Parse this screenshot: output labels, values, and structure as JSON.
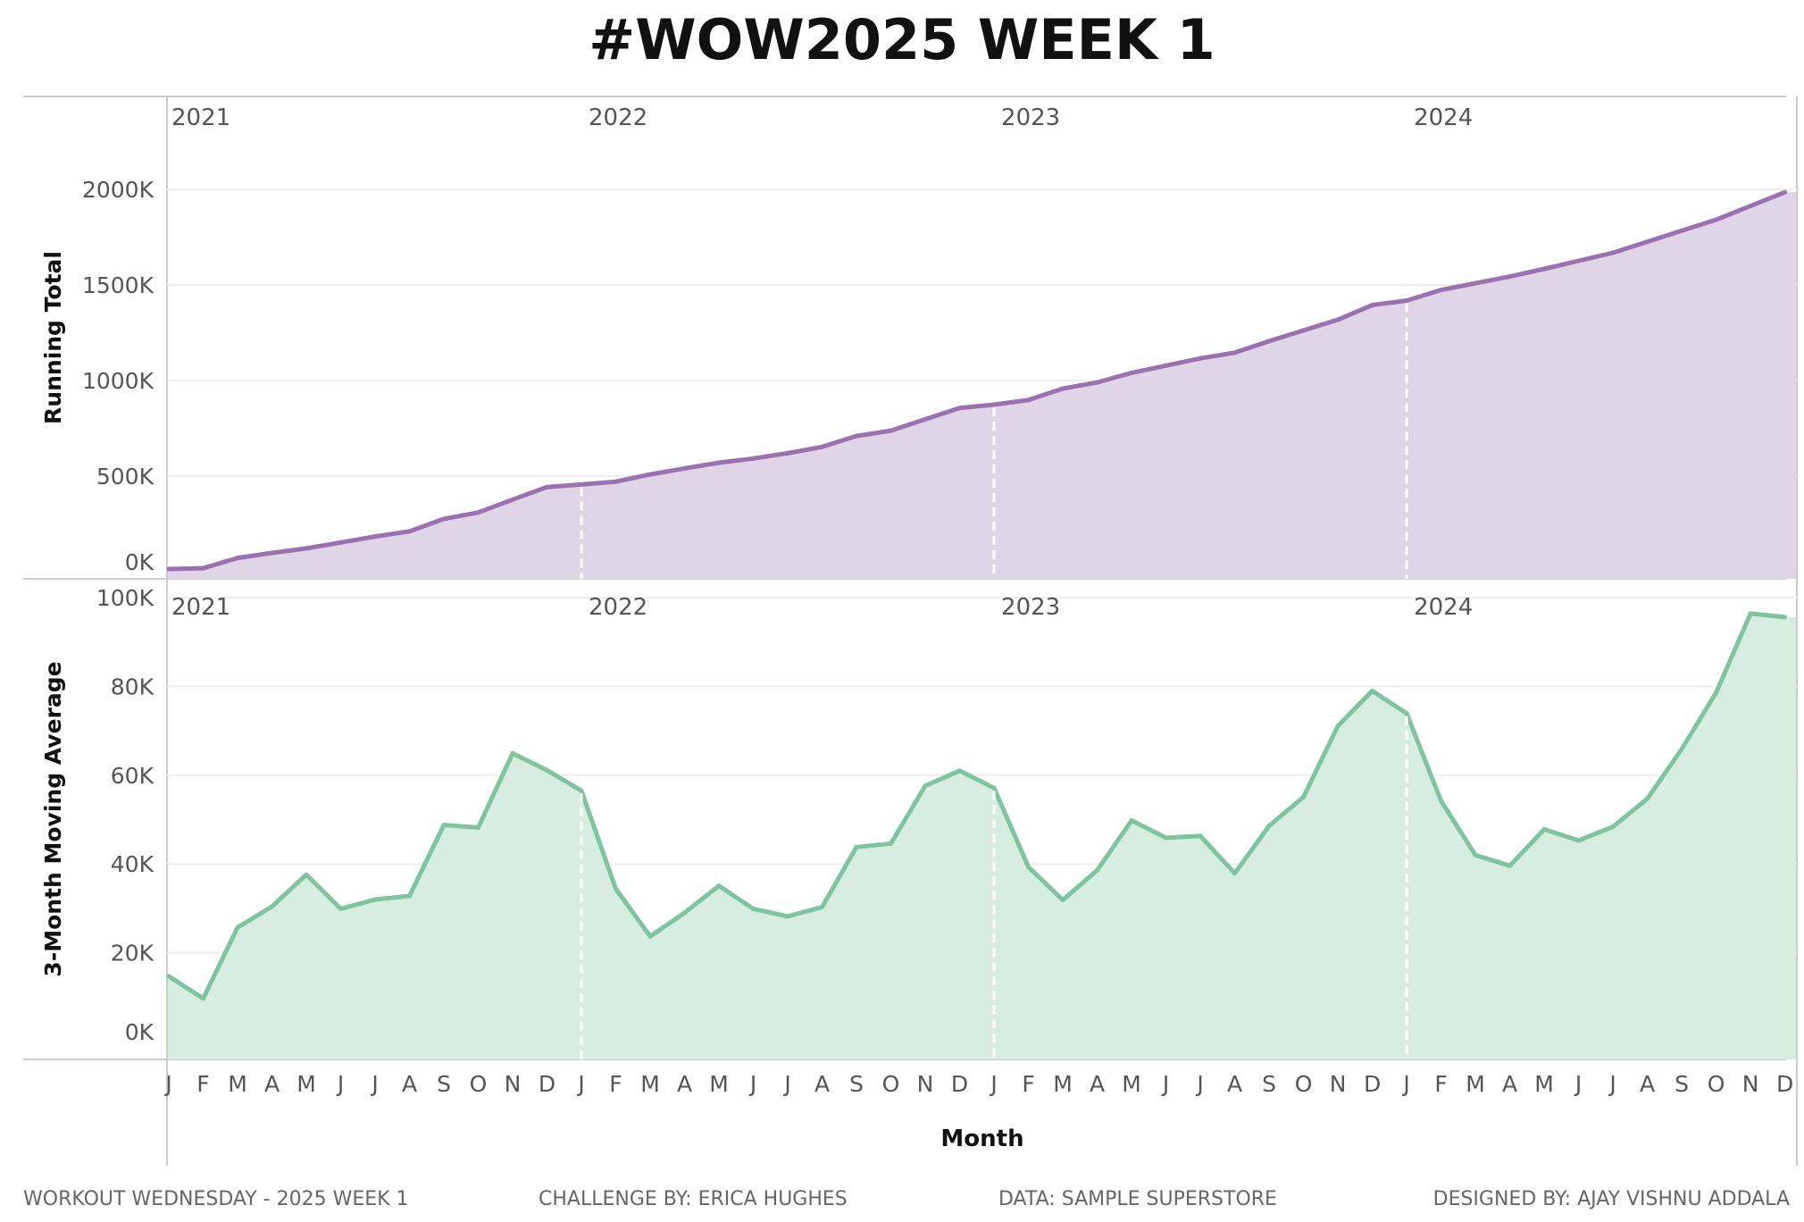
{
  "title": "#WOW2025 WEEK 1",
  "colors": {
    "running_line": "#9a72b0",
    "running_fill": "#e0d4e7",
    "avg_line": "#7ec49e",
    "avg_fill": "#d6ede0",
    "grid": "#eeeeee",
    "axis_text": "#555555"
  },
  "chart_data": [
    {
      "type": "area",
      "ylabel": "Running Total",
      "ylim": [
        0,
        2350
      ],
      "y_ticks": [
        "0K",
        "500K",
        "1000K",
        "1500K",
        "2000K"
      ],
      "y_tick_values": [
        0,
        500,
        1000,
        1500,
        2000
      ],
      "year_labels": [
        "2021",
        "2022",
        "2023",
        "2024"
      ],
      "values": [
        14,
        18,
        72,
        98,
        122,
        153,
        184,
        211,
        276,
        310,
        377,
        443,
        456,
        471,
        509,
        540,
        570,
        592,
        620,
        653,
        710,
        738,
        797,
        856,
        874,
        898,
        958,
        990,
        1040,
        1078,
        1116,
        1146,
        1206,
        1262,
        1318,
        1395,
        1418,
        1474,
        1509,
        1544,
        1584,
        1626,
        1668,
        1726,
        1784,
        1841,
        1913,
        1985
      ]
    },
    {
      "type": "area",
      "ylabel": "3-Month Moving Average",
      "ylim": [
        0,
        100
      ],
      "y_ticks": [
        "0K",
        "20K",
        "40K",
        "60K",
        "80K",
        "100K"
      ],
      "y_tick_values": [
        0,
        20,
        40,
        60,
        80,
        100
      ],
      "year_labels": [
        "2021",
        "2022",
        "2023",
        "2024"
      ],
      "xlabel": "Month",
      "month_labels": [
        "J",
        "F",
        "M",
        "A",
        "M",
        "J",
        "J",
        "A",
        "S",
        "O",
        "N",
        "D",
        "J",
        "F",
        "M",
        "A",
        "M",
        "J",
        "J",
        "A",
        "S",
        "O",
        "N",
        "D",
        "J",
        "F",
        "M",
        "A",
        "M",
        "J",
        "J",
        "A",
        "S",
        "O",
        "N",
        "D",
        "J",
        "F",
        "M",
        "A",
        "M",
        "J",
        "J",
        "A",
        "S",
        "O",
        "N",
        "D"
      ],
      "values": [
        14.7,
        9.7,
        25.7,
        30.4,
        37.6,
        29.9,
        32.0,
        32.8,
        48.8,
        48.2,
        64.9,
        61.1,
        56.5,
        34.4,
        23.7,
        29.0,
        35.1,
        29.9,
        28.2,
        30.3,
        43.8,
        44.6,
        57.6,
        61.0,
        57.1,
        39.3,
        31.9,
        38.6,
        49.8,
        45.9,
        46.3,
        37.9,
        48.6,
        55.1,
        71.1,
        79.0,
        73.9,
        54.2,
        42.0,
        39.6,
        47.8,
        45.3,
        48.4,
        54.7,
        65.9,
        78.6,
        96.4,
        95.6
      ]
    }
  ],
  "footer": {
    "left": "WORKOUT WEDNESDAY - 2025 WEEK 1",
    "center_left": "CHALLENGE BY: ERICA HUGHES",
    "center_right": "DATA: SAMPLE SUPERSTORE",
    "right": "DESIGNED BY: AJAY VISHNU ADDALA"
  }
}
